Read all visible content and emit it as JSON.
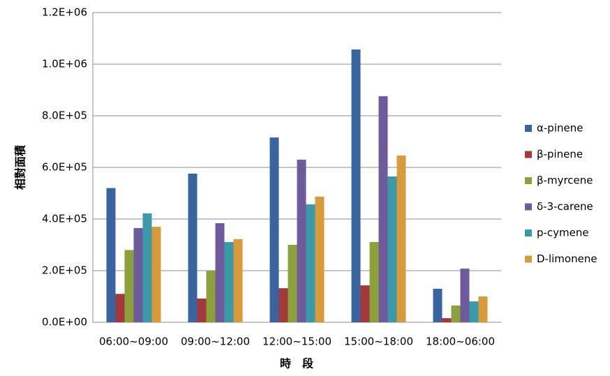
{
  "chart_data": {
    "type": "bar",
    "y_label": "相對面積",
    "x_label": "時　段",
    "categories": [
      "06:00~09:00",
      "09:00~12:00",
      "12:00~15:00",
      "15:00~18:00",
      "18:00~06:00"
    ],
    "series": [
      {
        "name": "α-pinene",
        "color": "#3a64a0",
        "values": [
          520000,
          576000,
          716000,
          1057000,
          130000
        ]
      },
      {
        "name": "β-pinene",
        "color": "#a3393a",
        "values": [
          110000,
          92000,
          132000,
          143000,
          16000
        ]
      },
      {
        "name": "β-myrcene",
        "color": "#8ca03c",
        "values": [
          280000,
          200000,
          300000,
          311000,
          65000
        ]
      },
      {
        "name": "δ-3-carene",
        "color": "#6e5b9c",
        "values": [
          365000,
          384000,
          630000,
          876000,
          208000
        ]
      },
      {
        "name": "p-cymene",
        "color": "#3a9aaa",
        "values": [
          422000,
          311000,
          457000,
          565000,
          81000
        ]
      },
      {
        "name": "D-limonene",
        "color": "#d99b3a",
        "values": [
          370000,
          322000,
          487000,
          646000,
          100000
        ]
      }
    ],
    "ylim": [
      0,
      1200000
    ],
    "yticks": [
      {
        "value": 0,
        "label": "0.0E+00"
      },
      {
        "value": 200000,
        "label": "2.0E+05"
      },
      {
        "value": 400000,
        "label": "4.0E+05"
      },
      {
        "value": 600000,
        "label": "6.0E+05"
      },
      {
        "value": 800000,
        "label": "8.0E+05"
      },
      {
        "value": 1000000,
        "label": "1.0E+06"
      },
      {
        "value": 1200000,
        "label": "1.2E+06"
      }
    ],
    "grid": true,
    "legend": "right"
  }
}
